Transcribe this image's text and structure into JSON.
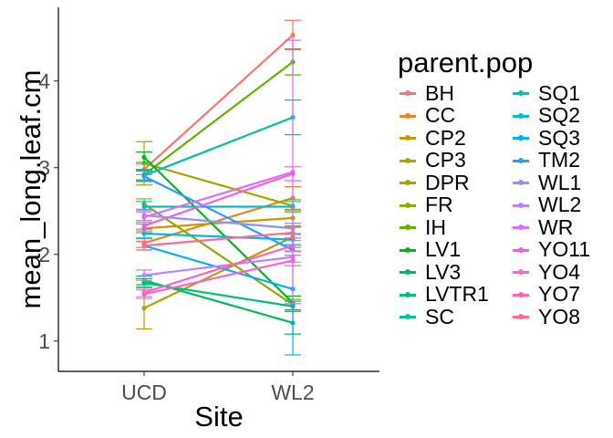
{
  "chart_data": {
    "type": "line",
    "xlabel": "Site",
    "ylabel": "mean_long.leaf.cm",
    "categories": [
      "UCD",
      "WL2"
    ],
    "ylim": [
      0.65,
      4.85
    ],
    "yticks": [
      1,
      2,
      3,
      4
    ],
    "grid": false,
    "legend": {
      "title": "parent.pop",
      "placement": "right",
      "columns": 2
    },
    "series": [
      {
        "name": "BH",
        "color": "#F8766D",
        "values": [
          2.98,
          4.53
        ],
        "err": [
          [
            2.92,
            3.04
          ],
          [
            4.36,
            4.7
          ]
        ]
      },
      {
        "name": "CC",
        "color": "#E7851E",
        "values": [
          2.13,
          2.65
        ],
        "err": [
          [
            2.08,
            2.18
          ],
          [
            2.52,
            2.78
          ]
        ]
      },
      {
        "name": "CP2",
        "color": "#D09400",
        "values": [
          2.3,
          2.42
        ],
        "err": [
          [
            2.25,
            2.35
          ],
          [
            2.33,
            2.51
          ]
        ]
      },
      {
        "name": "CP3",
        "color": "#B2A100",
        "values": [
          1.38,
          2.2
        ],
        "err": [
          [
            1.14,
            1.62
          ],
          [
            2.08,
            2.32
          ]
        ]
      },
      {
        "name": "DPR",
        "color": "#A3A500",
        "values": [
          3.05,
          2.56
        ],
        "err": [
          [
            2.8,
            3.3
          ],
          [
            2.49,
            2.63
          ]
        ]
      },
      {
        "name": "FR",
        "color": "#89AC00",
        "values": [
          2.58,
          1.42
        ],
        "err": [
          [
            2.52,
            2.64
          ],
          [
            1.36,
            1.48
          ]
        ]
      },
      {
        "name": "IH",
        "color": "#5EB300",
        "values": [
          2.92,
          4.22
        ],
        "err": [
          [
            2.86,
            2.98
          ],
          [
            4.07,
            4.37
          ]
        ]
      },
      {
        "name": "LV1",
        "color": "#00B81F",
        "values": [
          3.12,
          1.44
        ],
        "err": [
          [
            3.06,
            3.18
          ],
          [
            1.36,
            1.52
          ]
        ]
      },
      {
        "name": "LV3",
        "color": "#00BC56",
        "values": [
          1.7,
          1.21
        ],
        "err": [
          [
            1.65,
            1.75
          ],
          [
            1.08,
            1.34
          ]
        ]
      },
      {
        "name": "LVTR1",
        "color": "#00BF7D",
        "values": [
          1.67,
          1.4
        ],
        "err": [
          [
            1.62,
            1.72
          ],
          [
            1.34,
            1.46
          ]
        ]
      },
      {
        "name": "SC",
        "color": "#00C0A3",
        "values": [
          2.91,
          3.58
        ],
        "err": [
          [
            2.85,
            2.97
          ],
          [
            3.38,
            3.78
          ]
        ]
      },
      {
        "name": "SQ1",
        "color": "#00BFC4",
        "values": [
          2.55,
          2.55
        ],
        "err": [
          [
            2.49,
            2.61
          ],
          [
            2.49,
            2.61
          ]
        ]
      },
      {
        "name": "SQ2",
        "color": "#00B8E5",
        "values": [
          2.24,
          2.17
        ],
        "err": [
          [
            2.19,
            2.29
          ],
          [
            2.11,
            2.23
          ]
        ]
      },
      {
        "name": "SQ3",
        "color": "#00ACFC",
        "values": [
          2.1,
          1.6
        ],
        "err": [
          [
            2.05,
            2.15
          ],
          [
            0.84,
            2.36
          ]
        ]
      },
      {
        "name": "TM2",
        "color": "#2B9AFF",
        "values": [
          2.9,
          2.05
        ],
        "err": [
          [
            2.84,
            2.96
          ],
          [
            1.99,
            2.11
          ]
        ]
      },
      {
        "name": "WL1",
        "color": "#8B93FF",
        "values": [
          2.45,
          2.3
        ],
        "err": [
          [
            2.39,
            2.51
          ],
          [
            2.24,
            2.36
          ]
        ]
      },
      {
        "name": "WL2",
        "color": "#B983FF",
        "values": [
          1.76,
          1.97
        ],
        "err": [
          [
            1.7,
            1.82
          ],
          [
            1.91,
            2.03
          ]
        ]
      },
      {
        "name": "WR",
        "color": "#E06CF5",
        "values": [
          2.43,
          2.95
        ],
        "err": [
          [
            2.37,
            2.49
          ],
          [
            1.43,
            4.47
          ]
        ]
      },
      {
        "name": "YO11",
        "color": "#F35FE0",
        "values": [
          2.33,
          2.93
        ],
        "err": [
          [
            2.27,
            2.39
          ],
          [
            2.85,
            3.01
          ]
        ]
      },
      {
        "name": "YO4",
        "color": "#FC61D5",
        "values": [
          1.54,
          1.93
        ],
        "err": [
          [
            1.49,
            1.59
          ],
          [
            1.87,
            1.99
          ]
        ]
      },
      {
        "name": "YO7",
        "color": "#FF62BC",
        "values": [
          1.56,
          2.1
        ],
        "err": [
          [
            1.51,
            1.61
          ],
          [
            2.04,
            2.16
          ]
        ]
      },
      {
        "name": "YO8",
        "color": "#FF6C91",
        "values": [
          2.1,
          2.25
        ],
        "err": [
          [
            2.05,
            2.15
          ],
          [
            2.19,
            2.31
          ]
        ]
      }
    ]
  }
}
